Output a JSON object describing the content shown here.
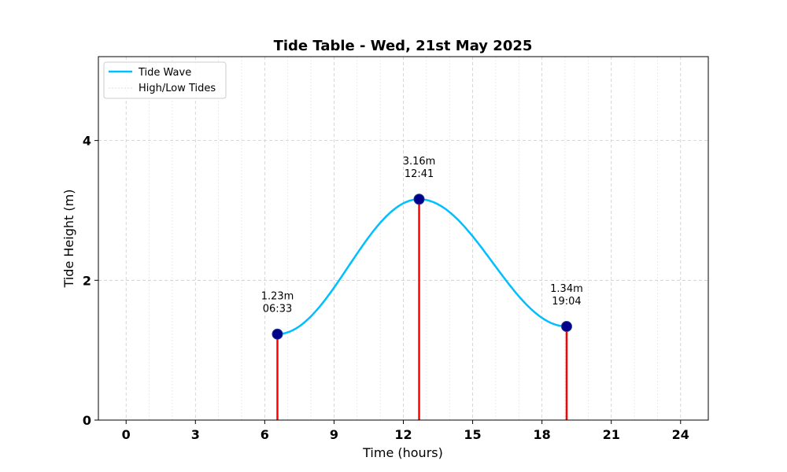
{
  "chart_data": {
    "type": "line",
    "title": "Tide Table - Wed, 21st May 2025",
    "xlabel": "Time (hours)",
    "ylabel": "Tide Height (m)",
    "xlim": [
      -1.2,
      25.2
    ],
    "ylim": [
      0,
      5.2
    ],
    "xticks": [
      0,
      3,
      6,
      9,
      12,
      15,
      18,
      21,
      24
    ],
    "xtick_labels": [
      "0",
      "3",
      "6",
      "9",
      "12",
      "15",
      "18",
      "21",
      "24"
    ],
    "yticks": [
      0,
      2,
      4
    ],
    "ytick_labels": [
      "0",
      "2",
      "4"
    ],
    "grid": true,
    "legend_position": "top-left",
    "series": [
      {
        "name": "Tide Wave",
        "color": "#00bfff",
        "x_range": [
          6.55,
          19.07
        ]
      },
      {
        "name": "High/Low Tides",
        "color": "#ff0000"
      }
    ],
    "tides": [
      {
        "time": 6.55,
        "height": 1.23,
        "height_label": "1.23m",
        "time_label": "06:33"
      },
      {
        "time": 12.683,
        "height": 3.16,
        "height_label": "3.16m",
        "time_label": "12:41"
      },
      {
        "time": 19.067,
        "height": 1.34,
        "height_label": "1.34m",
        "time_label": "19:04"
      }
    ],
    "marker_color": "#00008b"
  }
}
